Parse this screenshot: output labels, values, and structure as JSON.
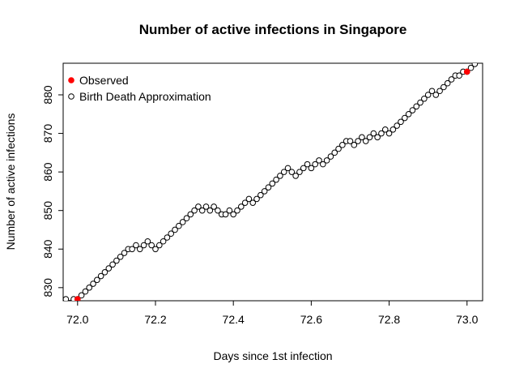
{
  "chart_data": {
    "type": "scatter",
    "title": "Number of active infections in Singapore",
    "x_label": "Days since 1st infection",
    "y_label": "Number of active infections",
    "xlim": [
      71.963,
      73.04
    ],
    "ylim": [
      826.6,
      888.2
    ],
    "xticks": [
      {
        "value": 72,
        "label": "72.0"
      },
      72.2,
      72.4,
      72.6,
      72.8,
      {
        "value": 73,
        "label": "73.0"
      }
    ],
    "yticks": [
      830,
      840,
      850,
      860,
      870,
      880
    ],
    "legend": "topleft",
    "series": [
      {
        "name": "Observed",
        "color": "#ff0000",
        "filled": true,
        "x": [
          72.0,
          73.0
        ],
        "values": [
          827,
          886
        ]
      },
      {
        "name": "Birth Death Approximation",
        "color": "#000000",
        "filled": false,
        "x": [
          71.96,
          71.97,
          71.98,
          71.99,
          72.0,
          72.01,
          72.02,
          72.03,
          72.04,
          72.05,
          72.06,
          72.07,
          72.08,
          72.09,
          72.1,
          72.11,
          72.12,
          72.13,
          72.14,
          72.15,
          72.16,
          72.17,
          72.18,
          72.19,
          72.2,
          72.21,
          72.22,
          72.23,
          72.24,
          72.25,
          72.26,
          72.27,
          72.28,
          72.29,
          72.3,
          72.31,
          72.32,
          72.33,
          72.34,
          72.35,
          72.36,
          72.37,
          72.38,
          72.39,
          72.4,
          72.41,
          72.42,
          72.43,
          72.44,
          72.45,
          72.46,
          72.47,
          72.48,
          72.49,
          72.5,
          72.51,
          72.52,
          72.53,
          72.54,
          72.55,
          72.56,
          72.57,
          72.58,
          72.59,
          72.6,
          72.61,
          72.62,
          72.63,
          72.64,
          72.65,
          72.66,
          72.67,
          72.68,
          72.69,
          72.7,
          72.71,
          72.72,
          72.73,
          72.74,
          72.75,
          72.76,
          72.77,
          72.78,
          72.79,
          72.8,
          72.81,
          72.82,
          72.83,
          72.84,
          72.85,
          72.86,
          72.87,
          72.88,
          72.89,
          72.9,
          72.91,
          72.92,
          72.93,
          72.94,
          72.95,
          72.96,
          72.97,
          72.98,
          72.99,
          73.0,
          73.01,
          73.02,
          73.03
        ],
        "values": [
          826,
          827,
          826,
          827,
          827,
          828,
          829,
          830,
          831,
          832,
          833,
          834,
          835,
          836,
          837,
          838,
          839,
          840,
          840,
          841,
          840,
          841,
          842,
          841,
          840,
          841,
          842,
          843,
          844,
          845,
          846,
          847,
          848,
          849,
          850,
          851,
          850,
          851,
          850,
          851,
          850,
          849,
          849,
          850,
          849,
          850,
          851,
          852,
          853,
          852,
          853,
          854,
          855,
          856,
          857,
          858,
          859,
          860,
          861,
          860,
          859,
          860,
          861,
          862,
          861,
          862,
          863,
          862,
          863,
          864,
          865,
          866,
          867,
          868,
          868,
          867,
          868,
          869,
          868,
          869,
          870,
          869,
          870,
          871,
          870,
          871,
          872,
          873,
          874,
          875,
          876,
          877,
          878,
          879,
          880,
          881,
          880,
          881,
          882,
          883,
          884,
          885,
          885,
          886,
          886,
          887,
          888,
          889
        ]
      }
    ]
  }
}
